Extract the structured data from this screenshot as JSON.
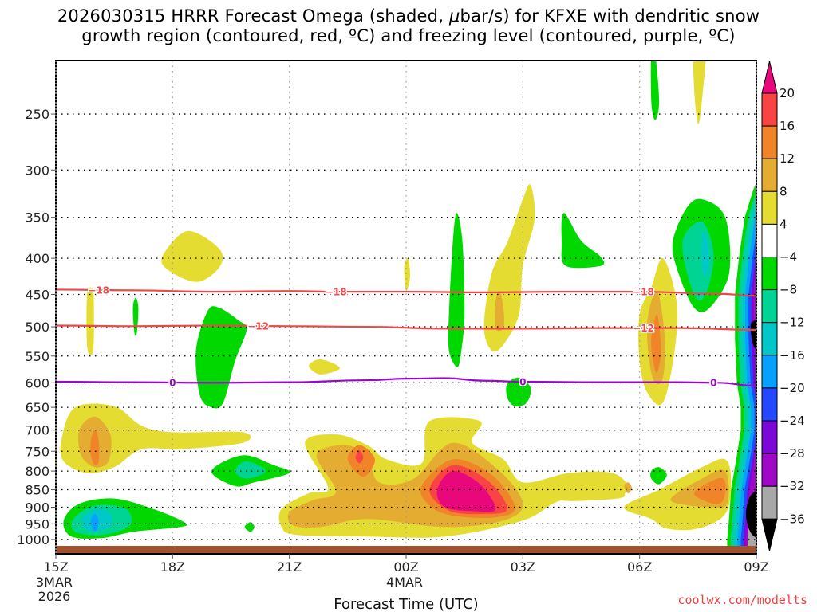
{
  "title": {
    "line1_pre": "2026030315 HRRR Forecast Omega (shaded, ",
    "line1_mu": "μ",
    "line1_post": "bar/s) for KFXE with dendritic snow",
    "line2": "growth region (contoured, red, ºC) and freezing level (contoured, purple, ºC)"
  },
  "credit": "coolwx.com/modelts",
  "chart_data": {
    "type": "heatmap",
    "title": "2026030315 HRRR Forecast Omega (shaded, μbar/s) for KFXE with dendritic snow growth region (contoured, red, ºC) and freezing level (contoured, purple, ºC)",
    "xlabel": "Forecast Time (UTC)",
    "ylabel": "",
    "x_ticks": [
      {
        "hour": 0,
        "label": "15Z",
        "sub": [
          "3MAR",
          "2026"
        ]
      },
      {
        "hour": 3,
        "label": "18Z",
        "sub": []
      },
      {
        "hour": 6,
        "label": "21Z",
        "sub": []
      },
      {
        "hour": 9,
        "label": "00Z",
        "sub": [
          "4MAR"
        ]
      },
      {
        "hour": 12,
        "label": "03Z",
        "sub": []
      },
      {
        "hour": 15,
        "label": "06Z",
        "sub": []
      },
      {
        "hour": 18,
        "label": "09Z",
        "sub": []
      }
    ],
    "xlim_hours": [
      0,
      18
    ],
    "y_ticks": [
      250,
      300,
      350,
      400,
      450,
      500,
      550,
      600,
      650,
      700,
      750,
      800,
      850,
      900,
      950,
      1000
    ],
    "ylim_hpa": [
      200,
      1025
    ],
    "y_scale": "log-pressure",
    "grid": true,
    "colorbar": {
      "levels": [
        -36,
        -32,
        -28,
        -24,
        -20,
        -16,
        -12,
        -8,
        -4,
        4,
        8,
        12,
        16,
        20
      ],
      "labels": [
        "20",
        "16",
        "12",
        "8",
        "4",
        "−4",
        "−8",
        "−12",
        "−16",
        "−20",
        "−24",
        "−28",
        "−32",
        "−36"
      ],
      "bins": [
        {
          "range": ">20",
          "color": "#e8087c"
        },
        {
          "range": "16 to 20",
          "color": "#f84444"
        },
        {
          "range": "12 to 16",
          "color": "#f08428"
        },
        {
          "range": "8 to 12",
          "color": "#e4ac30"
        },
        {
          "range": "4 to 8",
          "color": "#e4dc30"
        },
        {
          "range": "-4 to 4",
          "color": "#ffffff"
        },
        {
          "range": "-8 to -4",
          "color": "#00d800"
        },
        {
          "range": "-12 to -8",
          "color": "#00d494"
        },
        {
          "range": "-16 to -12",
          "color": "#00c8c8"
        },
        {
          "range": "-20 to -16",
          "color": "#08a0ff"
        },
        {
          "range": "-24 to -20",
          "color": "#2448ff"
        },
        {
          "range": "-28 to -24",
          "color": "#7c08d8"
        },
        {
          "range": "-32 to -28",
          "color": "#a008c8"
        },
        {
          "range": "-36 to -32",
          "color": "#a8a8a8"
        },
        {
          "range": "<-36",
          "color": "#000000"
        }
      ],
      "position": "right"
    },
    "contours": [
      {
        "name": "dgz-minus18",
        "value": -18,
        "label": "−18",
        "color": "#f04848",
        "points": [
          [
            0,
            443
          ],
          [
            2,
            444
          ],
          [
            4,
            446
          ],
          [
            6,
            445
          ],
          [
            7.2,
            446
          ],
          [
            9,
            446
          ],
          [
            11,
            447
          ],
          [
            13,
            446
          ],
          [
            15,
            446
          ],
          [
            17,
            449
          ],
          [
            18,
            452
          ]
        ],
        "label_hours": [
          1.1,
          7.2,
          15.1
        ]
      },
      {
        "name": "dgz-minus12",
        "value": -12,
        "label": "−12",
        "color": "#f04848",
        "points": [
          [
            0,
            498
          ],
          [
            2,
            499
          ],
          [
            4,
            498
          ],
          [
            6,
            499
          ],
          [
            8,
            500
          ],
          [
            10,
            503
          ],
          [
            12,
            503
          ],
          [
            14,
            502
          ],
          [
            16,
            502
          ],
          [
            18,
            505
          ]
        ],
        "label_hours": [
          5.2,
          15.1
        ]
      },
      {
        "name": "freezing-level",
        "value": 0,
        "label": "0",
        "color": "#9808c8",
        "points": [
          [
            0,
            598
          ],
          [
            2,
            599
          ],
          [
            4,
            600
          ],
          [
            6,
            599
          ],
          [
            8,
            595
          ],
          [
            9,
            592
          ],
          [
            10,
            591
          ],
          [
            11,
            596
          ],
          [
            12,
            598
          ],
          [
            14,
            599
          ],
          [
            16,
            599
          ],
          [
            17,
            600
          ],
          [
            18,
            606
          ]
        ],
        "label_hours": [
          3,
          12,
          16.9
        ]
      }
    ],
    "omega_regions": [
      {
        "bin": "4 to 8",
        "pts": [
          [
            0.75,
            740
          ],
          [
            0.9,
            760
          ],
          [
            1.05,
            740
          ],
          [
            0.9,
            720
          ]
        ]
      },
      {
        "bin": "4 to 8",
        "pts": [
          [
            2.8,
            392
          ],
          [
            3.4,
            366
          ],
          [
            4.2,
            388
          ],
          [
            4.2,
            412
          ],
          [
            3.6,
            432
          ],
          [
            2.8,
            412
          ]
        ]
      },
      {
        "bin": "4 to 8",
        "pts": [
          [
            0.8,
            452
          ],
          [
            0.9,
            440
          ],
          [
            0.97,
            452
          ],
          [
            0.97,
            530
          ],
          [
            0.9,
            548
          ],
          [
            0.8,
            530
          ]
        ]
      },
      {
        "bin": "-8 to -4",
        "pts": [
          [
            1.98,
            470
          ],
          [
            2.05,
            455
          ],
          [
            2.12,
            470
          ],
          [
            2.08,
            510
          ],
          [
            2.02,
            510
          ]
        ]
      },
      {
        "bin": "-8 to -4",
        "pts": [
          [
            3.6,
            540
          ],
          [
            3.9,
            475
          ],
          [
            4.2,
            470
          ],
          [
            4.7,
            490
          ],
          [
            4.9,
            505
          ],
          [
            4.6,
            560
          ],
          [
            4.3,
            640
          ],
          [
            4.0,
            650
          ],
          [
            3.7,
            625
          ]
        ]
      },
      {
        "bin": "4 to 8",
        "pts": [
          [
            6.5,
            568
          ],
          [
            6.8,
            556
          ],
          [
            7.3,
            572
          ],
          [
            6.8,
            584
          ]
        ]
      },
      {
        "bin": "4 to 8",
        "pts": [
          [
            8.95,
            412
          ],
          [
            9.05,
            400
          ],
          [
            9.1,
            425
          ],
          [
            9.0,
            445
          ]
        ]
      },
      {
        "bin": "-8 to -4",
        "pts": [
          [
            10.1,
            480
          ],
          [
            10.2,
            380
          ],
          [
            10.3,
            345
          ],
          [
            10.45,
            380
          ],
          [
            10.5,
            480
          ],
          [
            10.4,
            550
          ],
          [
            10.3,
            570
          ],
          [
            10.1,
            540
          ]
        ]
      },
      {
        "bin": "4 to 8",
        "pts": [
          [
            11.0,
            500
          ],
          [
            11.2,
            420
          ],
          [
            11.6,
            380
          ],
          [
            12.0,
            330
          ],
          [
            12.2,
            315
          ],
          [
            12.3,
            352
          ],
          [
            12.0,
            410
          ],
          [
            11.9,
            480
          ],
          [
            11.5,
            530
          ],
          [
            11.2,
            540
          ]
        ]
      },
      {
        "bin": "8 to 12",
        "pts": [
          [
            11.3,
            460
          ],
          [
            11.4,
            445
          ],
          [
            11.5,
            470
          ],
          [
            11.5,
            502
          ],
          [
            11.3,
            502
          ]
        ]
      },
      {
        "bin": "-8 to -4",
        "pts": [
          [
            11.6,
            602
          ],
          [
            11.9,
            590
          ],
          [
            12.2,
            610
          ],
          [
            12.1,
            640
          ],
          [
            11.8,
            648
          ],
          [
            11.6,
            630
          ]
        ]
      },
      {
        "bin": "-8 to -4",
        "pts": [
          [
            13.05,
            345
          ],
          [
            13.5,
            378
          ],
          [
            14.0,
            398
          ],
          [
            14.0,
            410
          ],
          [
            13.1,
            410
          ],
          [
            13.0,
            380
          ]
        ]
      },
      {
        "bin": "-8 to -4",
        "pts": [
          [
            15.3,
            200
          ],
          [
            15.4,
            205
          ],
          [
            15.5,
            240
          ],
          [
            15.4,
            255
          ],
          [
            15.3,
            240
          ]
        ]
      },
      {
        "bin": "4 to 8",
        "pts": [
          [
            16.4,
            200
          ],
          [
            16.7,
            200
          ],
          [
            16.6,
            240
          ],
          [
            16.5,
            258
          ],
          [
            16.4,
            230
          ]
        ]
      },
      {
        "bin": "4 to 8",
        "pts": [
          [
            15.0,
            480
          ],
          [
            15.3,
            440
          ],
          [
            15.6,
            400
          ],
          [
            15.95,
            460
          ],
          [
            15.9,
            540
          ],
          [
            15.6,
            640
          ],
          [
            15.2,
            620
          ],
          [
            15.0,
            560
          ]
        ]
      },
      {
        "bin": "8 to 12",
        "pts": [
          [
            15.2,
            490
          ],
          [
            15.45,
            445
          ],
          [
            15.65,
            520
          ],
          [
            15.6,
            590
          ],
          [
            15.4,
            600
          ],
          [
            15.25,
            560
          ]
        ]
      },
      {
        "bin": "12 to 16",
        "pts": [
          [
            15.3,
            520
          ],
          [
            15.45,
            480
          ],
          [
            15.55,
            540
          ],
          [
            15.45,
            580
          ],
          [
            15.35,
            560
          ]
        ]
      },
      {
        "bin": "-8 to -4",
        "pts": [
          [
            15.85,
            380
          ],
          [
            16.2,
            340
          ],
          [
            16.6,
            330
          ],
          [
            17.2,
            350
          ],
          [
            17.3,
            420
          ],
          [
            16.8,
            470
          ],
          [
            16.4,
            470
          ],
          [
            16.0,
            420
          ]
        ]
      },
      {
        "bin": "-12 to -8",
        "pts": [
          [
            16.1,
            380
          ],
          [
            16.6,
            355
          ],
          [
            16.9,
            395
          ],
          [
            16.7,
            450
          ],
          [
            16.4,
            450
          ]
        ]
      },
      {
        "bin": "-16 to -12",
        "pts": [
          [
            16.6,
            375
          ],
          [
            16.7,
            368
          ],
          [
            16.78,
            405
          ],
          [
            16.7,
            425
          ],
          [
            16.6,
            410
          ]
        ]
      },
      {
        "bin": "-8 to -4",
        "pts": [
          [
            15.3,
            800
          ],
          [
            15.5,
            790
          ],
          [
            15.7,
            810
          ],
          [
            15.5,
            835
          ],
          [
            15.3,
            820
          ]
        ]
      }
    ]
  }
}
